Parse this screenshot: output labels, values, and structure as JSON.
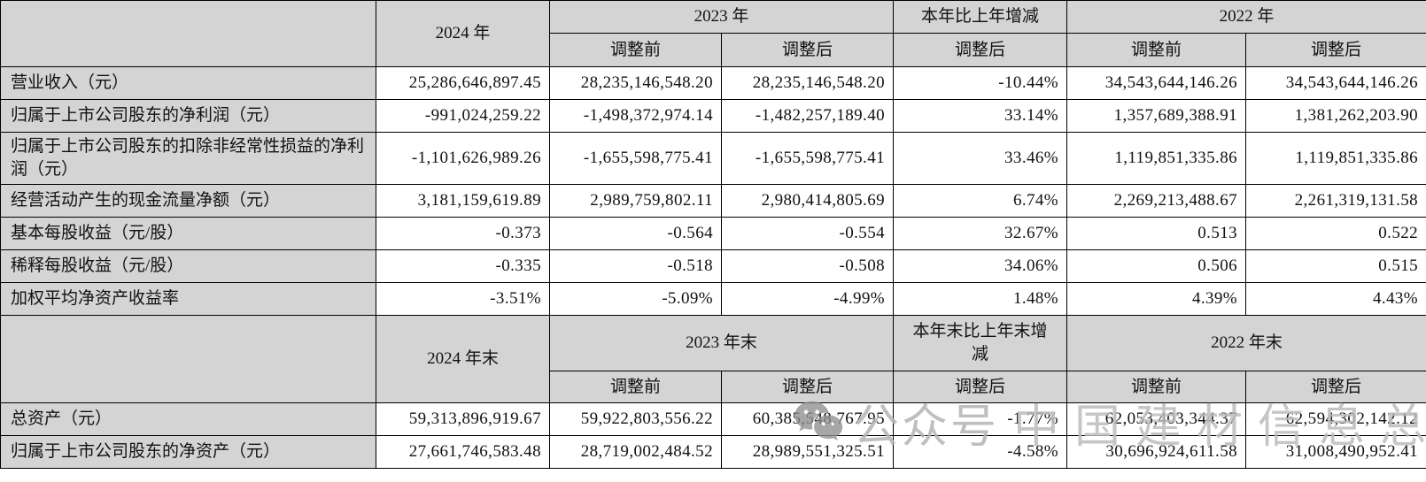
{
  "table": {
    "section1": {
      "corner_label": "",
      "year_current": "2024 年",
      "year_prev_group": "2023 年",
      "change_label": "本年比上年增减",
      "year_prev2_group": "2022 年",
      "sub_prev_before": "调整前",
      "sub_prev_after": "调整后",
      "sub_change_after": "调整后",
      "sub_prev2_before": "调整前",
      "sub_prev2_after": "调整后",
      "rows": [
        {
          "label": "营业收入（元）",
          "tall": false,
          "values": [
            "25,286,646,897.45",
            "28,235,146,548.20",
            "28,235,146,548.20",
            "-10.44%",
            "34,543,644,146.26",
            "34,543,644,146.26"
          ]
        },
        {
          "label": "归属于上市公司股东的净利润（元）",
          "tall": false,
          "values": [
            "-991,024,259.22",
            "-1,498,372,974.14",
            "-1,482,257,189.40",
            "33.14%",
            "1,357,689,388.91",
            "1,381,262,203.90"
          ]
        },
        {
          "label": "归属于上市公司股东的扣除非经常性损益的净利润（元）",
          "tall": true,
          "values": [
            "-1,101,626,989.26",
            "-1,655,598,775.41",
            "-1,655,598,775.41",
            "33.46%",
            "1,119,851,335.86",
            "1,119,851,335.86"
          ]
        },
        {
          "label": "经营活动产生的现金流量净额（元）",
          "tall": false,
          "values": [
            "3,181,159,619.89",
            "2,989,759,802.11",
            "2,980,414,805.69",
            "6.74%",
            "2,269,213,488.67",
            "2,261,319,131.58"
          ]
        },
        {
          "label": "基本每股收益（元/股）",
          "tall": false,
          "values": [
            "-0.373",
            "-0.564",
            "-0.554",
            "32.67%",
            "0.513",
            "0.522"
          ]
        },
        {
          "label": "稀释每股收益（元/股）",
          "tall": false,
          "values": [
            "-0.335",
            "-0.518",
            "-0.508",
            "34.06%",
            "0.506",
            "0.515"
          ]
        },
        {
          "label": "加权平均净资产收益率",
          "tall": false,
          "values": [
            "-3.51%",
            "-5.09%",
            "-4.99%",
            "1.48%",
            "4.39%",
            "4.43%"
          ]
        }
      ]
    },
    "section2": {
      "corner_label": "",
      "year_current": "2024 年末",
      "year_prev_group": "2023 年末",
      "change_label": "本年末比上年末增减",
      "year_prev2_group": "2022 年末",
      "sub_prev_before": "调整前",
      "sub_prev_after": "调整后",
      "sub_change_after": "调整后",
      "sub_prev2_before": "调整前",
      "sub_prev2_after": "调整后",
      "rows": [
        {
          "label": "总资产（元）",
          "tall": false,
          "values": [
            "59,313,896,919.67",
            "59,922,803,556.22",
            "60,385,548,767.95",
            "-1.77%",
            "62,053,403,344.37",
            "62,594,302,142.12"
          ]
        },
        {
          "label": "归属于上市公司股东的净资产（元）",
          "tall": false,
          "values": [
            "27,661,746,583.48",
            "28,719,002,484.52",
            "28,989,551,325.51",
            "-4.58%",
            "30,696,924,611.58",
            "31,008,490,952.41"
          ]
        }
      ]
    }
  },
  "watermark": {
    "icon": "wechat-icon",
    "prefix": "公众号",
    "text": "中国建材信息总网",
    "icon_color": "#8f8f8f",
    "text_color": "#bdbdbd"
  },
  "colors": {
    "header_bg": "#d4d4d4",
    "border": "#000000",
    "cell_bg": "#ffffff"
  }
}
